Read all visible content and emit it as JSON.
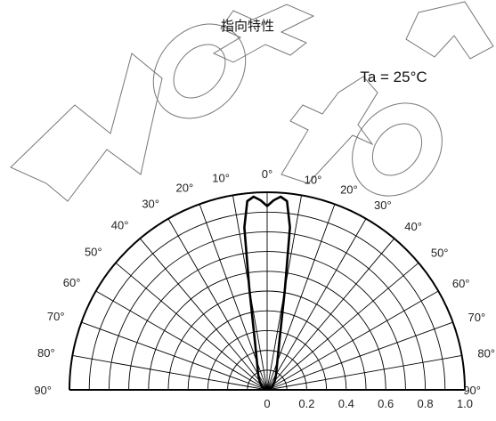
{
  "chart_data": {
    "type": "polar",
    "title": "指向特性",
    "condition": "Ta = 25°C",
    "watermark": "Not for",
    "angle_range_deg": [
      -90,
      90
    ],
    "radial_range": [
      0,
      1.0
    ],
    "radial_ticks": [
      "0",
      "0.2",
      "0.4",
      "0.6",
      "0.8",
      "1.0"
    ],
    "angle_labels_left": [
      "10°",
      "20°",
      "30°",
      "40°",
      "50°",
      "60°",
      "70°",
      "80°",
      "90°"
    ],
    "angle_labels_right": [
      "10°",
      "20°",
      "30°",
      "40°",
      "50°",
      "60°",
      "70°",
      "80°",
      "90°"
    ],
    "angle_label_center": "0°",
    "series": [
      {
        "angles_deg": [
          -90,
          -60,
          -40,
          -30,
          -20,
          -15,
          -10,
          -8,
          -6,
          -4,
          -2,
          0,
          2,
          4,
          6,
          8,
          10,
          15,
          20,
          30,
          40,
          60,
          90
        ],
        "values": [
          0.0,
          0.03,
          0.06,
          0.09,
          0.15,
          0.23,
          0.52,
          0.83,
          0.96,
          0.98,
          0.96,
          0.93,
          0.96,
          0.98,
          0.96,
          0.83,
          0.52,
          0.23,
          0.15,
          0.09,
          0.06,
          0.03,
          0.0
        ]
      }
    ]
  }
}
